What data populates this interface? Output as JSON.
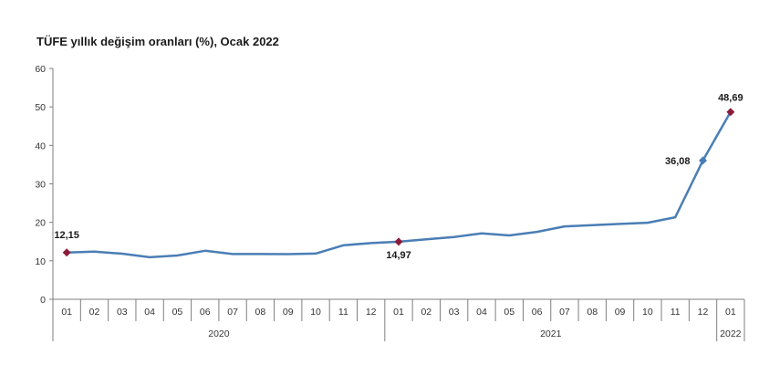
{
  "chart_data": {
    "type": "line",
    "title": "TÜFE yıllık değişim oranları (%), Ocak 2022",
    "xlabel": "",
    "ylabel": "",
    "ylim": [
      0,
      60
    ],
    "yticks": [
      0,
      10,
      20,
      30,
      40,
      50,
      60
    ],
    "grid": false,
    "categories": [
      "01",
      "02",
      "03",
      "04",
      "05",
      "06",
      "07",
      "08",
      "09",
      "10",
      "11",
      "12",
      "01",
      "02",
      "03",
      "04",
      "05",
      "06",
      "07",
      "08",
      "09",
      "10",
      "11",
      "12",
      "01"
    ],
    "year_groups": [
      {
        "label": "2020",
        "count": 12
      },
      {
        "label": "2021",
        "count": 12
      },
      {
        "label": "2022",
        "count": 1
      }
    ],
    "series": [
      {
        "color": "#4a7eb5",
        "values": [
          12.15,
          12.37,
          11.86,
          10.94,
          11.39,
          12.62,
          11.76,
          11.77,
          11.75,
          11.89,
          14.03,
          14.6,
          14.97,
          15.61,
          16.19,
          17.14,
          16.59,
          17.53,
          18.95,
          19.25,
          19.58,
          19.89,
          21.31,
          36.08,
          48.69
        ]
      }
    ],
    "annotations": [
      {
        "index": 0,
        "label": "12,15",
        "marker": "diamond",
        "marker_color": "#8b1c3a"
      },
      {
        "index": 12,
        "label": "14,97",
        "marker": "diamond",
        "marker_color": "#8b1c3a"
      },
      {
        "index": 23,
        "label": "36,08",
        "marker": "diamond",
        "marker_color": "#4a7eb5"
      },
      {
        "index": 24,
        "label": "48,69",
        "marker": "diamond",
        "marker_color": "#8b1c3a"
      }
    ],
    "colors": {
      "line": "#4a7eb5",
      "axis": "#7f7f7f",
      "highlight": "#8b1c3a"
    }
  }
}
